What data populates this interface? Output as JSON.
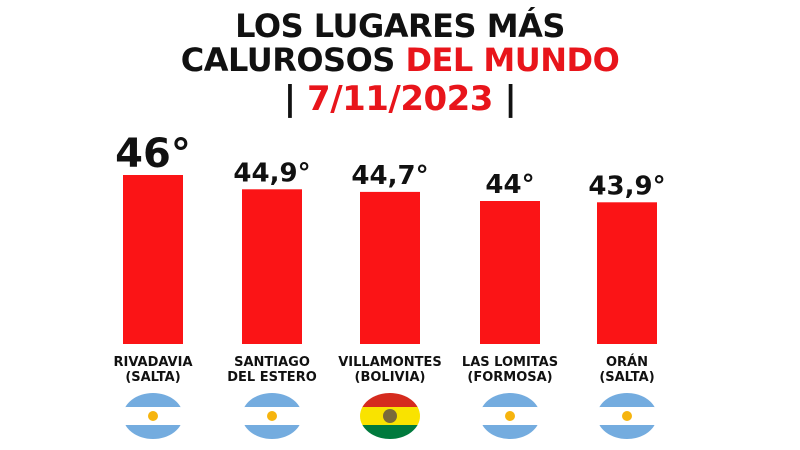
{
  "title": {
    "line1": "LOS LUGARES MÁS",
    "line2_main": "CALUROSOS",
    "line2_accent": "DEL MUNDO",
    "date_left_sep": "|",
    "date": "7/11/2023",
    "date_right_sep": "|"
  },
  "colors": {
    "bar": "#fb1416",
    "accent": "#e8151b",
    "text": "#111111"
  },
  "chart_data": {
    "type": "bar",
    "title": "LOS LUGARES MÁS CALUROSOS DEL MUNDO | 7/11/2023 |",
    "categories": [
      {
        "line1": "RIVADAVIA",
        "line2": "(SALTA)"
      },
      {
        "line1": "SANTIAGO",
        "line2": "DEL ESTERO"
      },
      {
        "line1": "VILLAMONTES",
        "line2": "(BOLIVIA)"
      },
      {
        "line1": "LAS LOMITAS",
        "line2": "(FORMOSA)"
      },
      {
        "line1": "ORÁN",
        "line2": "(SALTA)"
      }
    ],
    "values": [
      46,
      44.9,
      44.7,
      44,
      43.9
    ],
    "value_labels": [
      "46°",
      "44,9°",
      "44,7°",
      "44°",
      "43,9°"
    ],
    "flags": [
      "argentina-flag-icon",
      "argentina-flag-icon",
      "bolivia-flag-icon",
      "argentina-flag-icon",
      "argentina-flag-icon"
    ],
    "xlabel": "",
    "ylabel": "",
    "grid": false,
    "legend": "none"
  }
}
